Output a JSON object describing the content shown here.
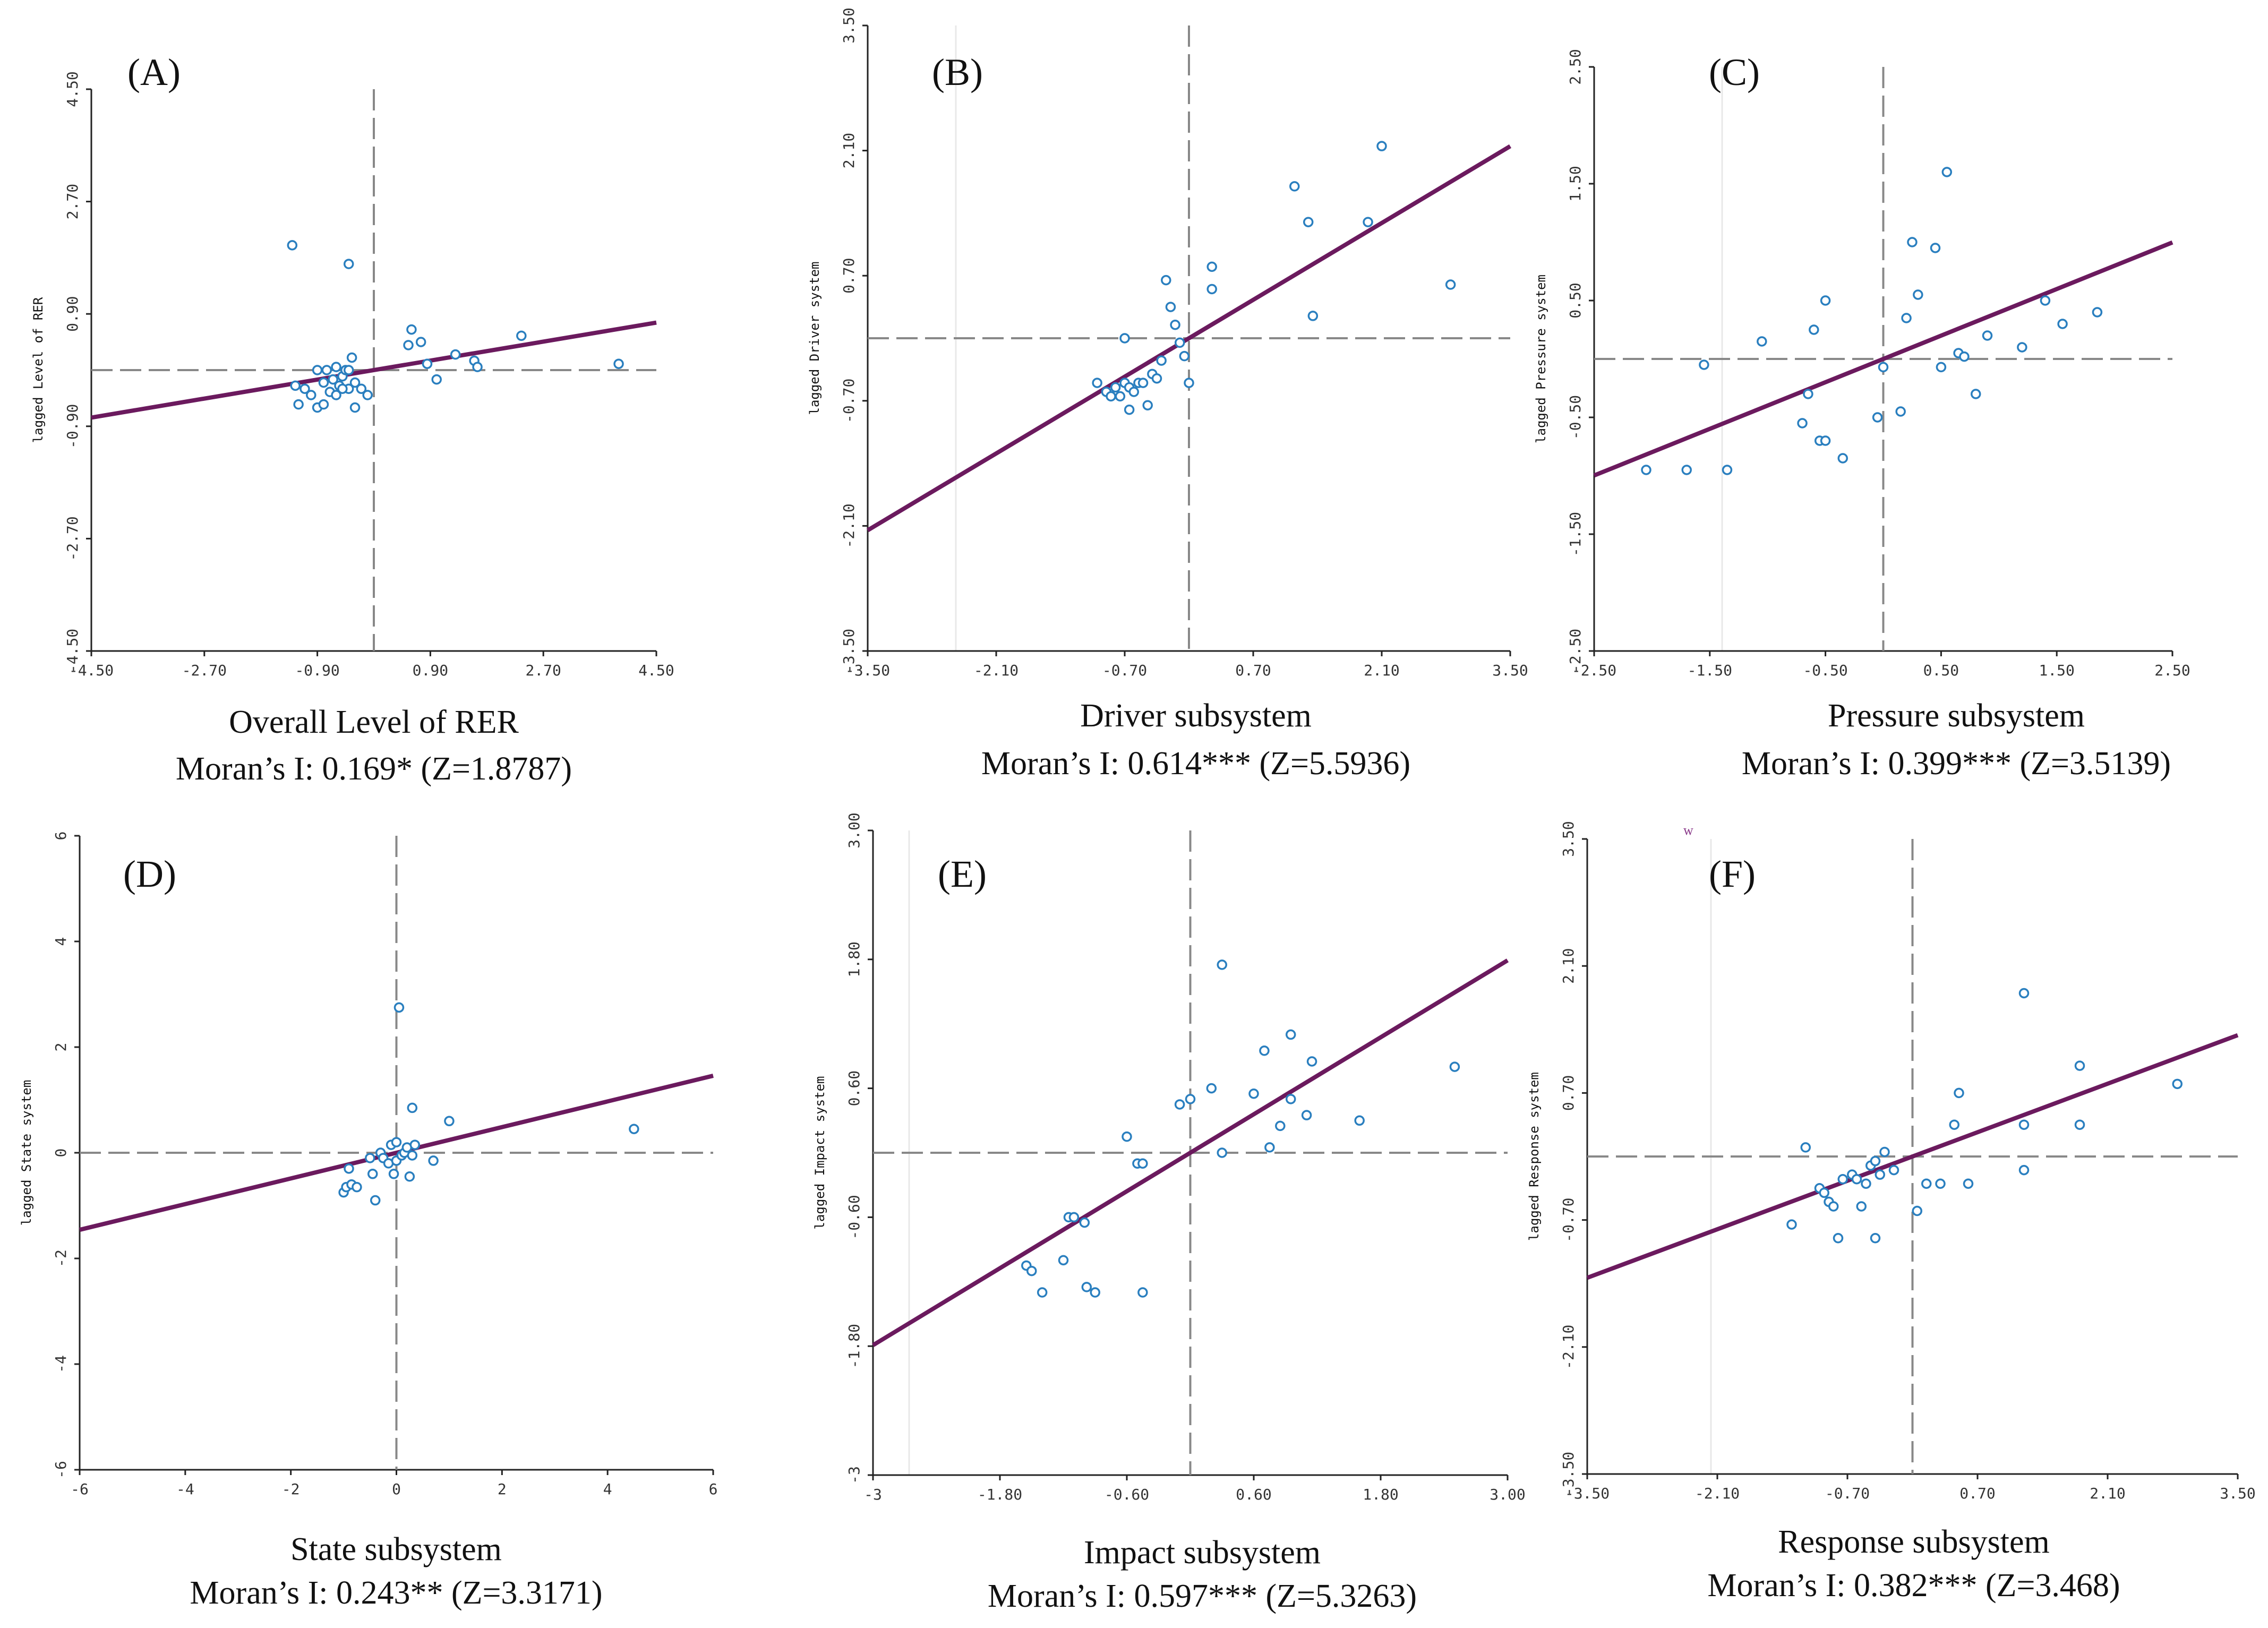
{
  "figure": {
    "colors": {
      "fit_line": "#6b1a5e",
      "points": "#2a7fbf",
      "zero_line": "#888888"
    },
    "stray_mark": "w"
  },
  "chart_data": [
    {
      "type": "scatter",
      "panel_label": "(A)",
      "xlabel": "Overall Level of RER",
      "ylabel": "lagged Level of RER",
      "moran_text": "Moran’s I: 0.169* (Z=1.8787)",
      "moran_i": 0.169,
      "z": 1.8787,
      "xlim": [
        -4.5,
        4.5
      ],
      "ylim": [
        -4.5,
        4.5
      ],
      "xticks": [
        -4.5,
        -2.7,
        -0.9,
        0.9,
        2.7,
        4.5
      ],
      "xtick_labels": [
        "-4.50",
        "-2.70",
        "-0.90",
        "0.90",
        "2.70",
        "4.50"
      ],
      "yticks": [
        -4.5,
        -2.7,
        -0.9,
        0.9,
        2.7,
        4.5
      ],
      "ytick_labels": [
        "-4.50",
        "-2.70",
        "-0.90",
        "0.90",
        "2.70",
        "4.50"
      ],
      "slope": 0.169,
      "intercept": 0.0,
      "points": [
        [
          -1.3,
          2.0
        ],
        [
          -0.4,
          1.7
        ],
        [
          -1.25,
          -0.25
        ],
        [
          -1.1,
          -0.3
        ],
        [
          -1.0,
          -0.4
        ],
        [
          -0.9,
          -0.6
        ],
        [
          -0.8,
          -0.2
        ],
        [
          -0.75,
          0.0
        ],
        [
          -0.7,
          -0.35
        ],
        [
          -0.65,
          -0.15
        ],
        [
          -0.6,
          -0.4
        ],
        [
          -0.55,
          -0.25
        ],
        [
          -0.5,
          -0.1
        ],
        [
          -0.45,
          0.0
        ],
        [
          -0.4,
          -0.3
        ],
        [
          -0.35,
          0.2
        ],
        [
          -0.3,
          -0.6
        ],
        [
          -0.3,
          -0.2
        ],
        [
          -0.2,
          -0.3
        ],
        [
          -0.9,
          0.0
        ],
        [
          -0.6,
          0.05
        ],
        [
          -0.5,
          -0.3
        ],
        [
          -0.8,
          -0.55
        ],
        [
          -0.4,
          0.0
        ],
        [
          0.55,
          0.4
        ],
        [
          0.6,
          0.65
        ],
        [
          0.75,
          0.45
        ],
        [
          0.85,
          0.1
        ],
        [
          1.0,
          -0.15
        ],
        [
          1.3,
          0.25
        ],
        [
          1.6,
          0.15
        ],
        [
          1.65,
          0.05
        ],
        [
          2.35,
          0.55
        ],
        [
          -1.2,
          -0.55
        ],
        [
          3.9,
          0.1
        ],
        [
          -0.1,
          -0.4
        ]
      ]
    },
    {
      "type": "scatter",
      "panel_label": "(B)",
      "xlabel": "Driver subsystem",
      "ylabel": "lagged Driver system",
      "moran_text": "Moran’s I: 0.614*** (Z=5.5936)",
      "moran_i": 0.614,
      "z": 5.5936,
      "xlim": [
        -3.5,
        3.5
      ],
      "ylim": [
        -3.5,
        3.5
      ],
      "xticks": [
        -3.5,
        -2.1,
        -0.7,
        0.7,
        2.1,
        3.5
      ],
      "xtick_labels": [
        "-3.50",
        "-2.10",
        "-0.70",
        "0.70",
        "2.10",
        "3.50"
      ],
      "yticks": [
        -3.5,
        -2.1,
        -0.7,
        0.7,
        2.1,
        3.5
      ],
      "ytick_labels": [
        "-3.50",
        "-2.10",
        "-0.70",
        "0.70",
        "2.10",
        "3.50"
      ],
      "slope": 0.614,
      "intercept": 0.0,
      "points": [
        [
          -1.0,
          -0.5
        ],
        [
          -0.9,
          -0.6
        ],
        [
          -0.85,
          -0.65
        ],
        [
          -0.8,
          -0.55
        ],
        [
          -0.75,
          -0.65
        ],
        [
          -0.7,
          -0.5
        ],
        [
          -0.65,
          -0.55
        ],
        [
          -0.65,
          -0.8
        ],
        [
          -0.6,
          -0.6
        ],
        [
          -0.55,
          -0.5
        ],
        [
          -0.5,
          -0.5
        ],
        [
          -0.45,
          -0.75
        ],
        [
          -0.4,
          -0.4
        ],
        [
          -0.35,
          -0.45
        ],
        [
          -0.3,
          -0.25
        ],
        [
          -0.25,
          0.65
        ],
        [
          -0.2,
          0.35
        ],
        [
          -0.7,
          0.0
        ],
        [
          -0.15,
          0.15
        ],
        [
          -0.1,
          -0.05
        ],
        [
          -0.05,
          -0.2
        ],
        [
          0.0,
          -0.5
        ],
        [
          0.25,
          0.8
        ],
        [
          0.25,
          0.55
        ],
        [
          1.15,
          1.7
        ],
        [
          1.3,
          1.3
        ],
        [
          1.35,
          0.25
        ],
        [
          1.95,
          1.3
        ],
        [
          2.1,
          2.15
        ],
        [
          2.85,
          0.6
        ]
      ]
    },
    {
      "type": "scatter",
      "panel_label": "(C)",
      "xlabel": "Pressure subsystem",
      "ylabel": "lagged Pressure system",
      "moran_text": "Moran’s I: 0.399*** (Z=3.5139)",
      "moran_i": 0.399,
      "z": 3.5139,
      "xlim": [
        -2.5,
        2.5
      ],
      "ylim": [
        -2.5,
        2.5
      ],
      "xticks": [
        -2.5,
        -1.5,
        -0.5,
        0.5,
        1.5,
        2.5
      ],
      "xtick_labels": [
        "-2.50",
        "-1.50",
        "-0.50",
        "0.50",
        "1.50",
        "2.50"
      ],
      "yticks": [
        -2.5,
        -1.5,
        -0.5,
        0.5,
        1.5,
        2.5
      ],
      "ytick_labels": [
        "-2.50",
        "-1.50",
        "-0.50",
        "0.50",
        "1.50",
        "2.50"
      ],
      "slope": 0.399,
      "intercept": 0.0,
      "points": [
        [
          -2.05,
          -0.95
        ],
        [
          -1.7,
          -0.95
        ],
        [
          -1.35,
          -0.95
        ],
        [
          -1.55,
          -0.05
        ],
        [
          -1.05,
          0.15
        ],
        [
          -0.7,
          -0.55
        ],
        [
          -0.65,
          -0.3
        ],
        [
          -0.6,
          0.25
        ],
        [
          -0.55,
          -0.7
        ],
        [
          -0.5,
          -0.7
        ],
        [
          -0.5,
          0.5
        ],
        [
          -0.35,
          -0.85
        ],
        [
          -0.05,
          -0.5
        ],
        [
          0.0,
          -0.07
        ],
        [
          0.15,
          -0.45
        ],
        [
          0.2,
          0.35
        ],
        [
          0.25,
          1.0
        ],
        [
          0.3,
          0.55
        ],
        [
          0.45,
          0.95
        ],
        [
          0.5,
          -0.07
        ],
        [
          0.55,
          1.6
        ],
        [
          0.65,
          0.05
        ],
        [
          0.7,
          0.02
        ],
        [
          0.8,
          -0.3
        ],
        [
          0.9,
          0.2
        ],
        [
          1.2,
          0.1
        ],
        [
          1.4,
          0.5
        ],
        [
          1.55,
          0.3
        ],
        [
          1.85,
          0.4
        ]
      ]
    },
    {
      "type": "scatter",
      "panel_label": "(D)",
      "xlabel": "State subsystem",
      "ylabel": "lagged State system",
      "moran_text": "Moran’s I: 0.243** (Z=3.3171)",
      "moran_i": 0.243,
      "z": 3.3171,
      "xlim": [
        -6,
        6
      ],
      "ylim": [
        -6,
        6
      ],
      "xticks": [
        -6,
        -4,
        -2,
        0,
        2,
        4,
        6
      ],
      "xtick_labels": [
        "-6",
        "-4",
        "-2",
        "0",
        "2",
        "4",
        "6"
      ],
      "yticks": [
        -6,
        -4,
        -2,
        0,
        2,
        4,
        6
      ],
      "ytick_labels": [
        "-6",
        "-4",
        "-2",
        "0",
        "2",
        "4",
        "6"
      ],
      "slope": 0.243,
      "intercept": 0.0,
      "points": [
        [
          -1.0,
          -0.75
        ],
        [
          -0.95,
          -0.65
        ],
        [
          -0.85,
          -0.6
        ],
        [
          -0.75,
          -0.65
        ],
        [
          -0.9,
          -0.3
        ],
        [
          -0.5,
          -0.1
        ],
        [
          -0.4,
          -0.9
        ],
        [
          -0.3,
          0.0
        ],
        [
          -0.25,
          -0.1
        ],
        [
          -0.15,
          -0.2
        ],
        [
          -0.1,
          0.15
        ],
        [
          -0.05,
          -0.4
        ],
        [
          0.0,
          0.2
        ],
        [
          0.0,
          -0.15
        ],
        [
          0.05,
          2.75
        ],
        [
          0.1,
          -0.05
        ],
        [
          0.15,
          0.0
        ],
        [
          0.2,
          0.1
        ],
        [
          0.25,
          -0.45
        ],
        [
          0.3,
          -0.05
        ],
        [
          0.3,
          0.85
        ],
        [
          0.35,
          0.15
        ],
        [
          0.7,
          -0.15
        ],
        [
          1.0,
          0.6
        ],
        [
          4.5,
          0.45
        ],
        [
          -0.45,
          -0.4
        ]
      ]
    },
    {
      "type": "scatter",
      "panel_label": "(E)",
      "xlabel": "Impact subsystem",
      "ylabel": "lagged Impact system",
      "moran_text": "Moran’s I: 0.597*** (Z=5.3263)",
      "moran_i": 0.597,
      "z": 5.3263,
      "xlim": [
        -3,
        3
      ],
      "ylim": [
        -3,
        3
      ],
      "xticks": [
        -3,
        -1.8,
        -0.6,
        0.6,
        1.8,
        3
      ],
      "xtick_labels": [
        "-3",
        "-1.80",
        "-0.60",
        "0.60",
        "1.80",
        "3.00"
      ],
      "yticks": [
        -3,
        -1.8,
        -0.6,
        0.6,
        1.8,
        3
      ],
      "ytick_labels": [
        "-3",
        "-1.80",
        "-0.60",
        "0.60",
        "1.80",
        "3.00"
      ],
      "slope": 0.597,
      "intercept": 0.0,
      "points": [
        [
          -1.55,
          -1.05
        ],
        [
          -1.5,
          -1.1
        ],
        [
          -1.4,
          -1.3
        ],
        [
          -1.2,
          -1.0
        ],
        [
          -1.15,
          -0.6
        ],
        [
          -1.1,
          -0.6
        ],
        [
          -1.0,
          -0.65
        ],
        [
          -0.98,
          -1.25
        ],
        [
          -0.9,
          -1.3
        ],
        [
          -0.6,
          0.15
        ],
        [
          -0.5,
          -0.1
        ],
        [
          -0.45,
          -0.1
        ],
        [
          -0.45,
          -1.3
        ],
        [
          -0.1,
          0.45
        ],
        [
          0.0,
          0.5
        ],
        [
          0.2,
          0.6
        ],
        [
          0.3,
          1.75
        ],
        [
          0.3,
          0.0
        ],
        [
          0.6,
          0.55
        ],
        [
          0.7,
          0.95
        ],
        [
          0.75,
          0.05
        ],
        [
          0.85,
          0.25
        ],
        [
          0.95,
          1.1
        ],
        [
          1.1,
          0.35
        ],
        [
          1.15,
          0.85
        ],
        [
          1.6,
          0.3
        ],
        [
          2.5,
          0.8
        ],
        [
          0.95,
          0.5
        ]
      ]
    },
    {
      "type": "scatter",
      "panel_label": "(F)",
      "xlabel": "Response subsystem",
      "ylabel": "lagged Response system",
      "moran_text": "Moran’s I: 0.382*** (Z=3.468)",
      "moran_i": 0.382,
      "z": 3.468,
      "xlim": [
        -3.5,
        3.5
      ],
      "ylim": [
        -3.5,
        3.5
      ],
      "xticks": [
        -3.5,
        -2.1,
        -0.7,
        0.7,
        2.1,
        3.5
      ],
      "xtick_labels": [
        "-3.50",
        "-2.10",
        "-0.70",
        "0.70",
        "2.10",
        "3.50"
      ],
      "yticks": [
        -3.5,
        -2.1,
        -0.7,
        0.7,
        2.1,
        3.5
      ],
      "ytick_labels": [
        "-3.50",
        "-2.10",
        "-0.70",
        "0.70",
        "2.10",
        "3.50"
      ],
      "slope": 0.382,
      "intercept": 0.0,
      "points": [
        [
          -1.3,
          -0.75
        ],
        [
          -1.15,
          0.1
        ],
        [
          -1.0,
          -0.35
        ],
        [
          -0.95,
          -0.4
        ],
        [
          -0.9,
          -0.5
        ],
        [
          -0.85,
          -0.55
        ],
        [
          -0.8,
          -0.9
        ],
        [
          -0.75,
          -0.25
        ],
        [
          -0.65,
          -0.2
        ],
        [
          -0.6,
          -0.25
        ],
        [
          -0.55,
          -0.55
        ],
        [
          -0.5,
          -0.3
        ],
        [
          -0.45,
          -0.1
        ],
        [
          -0.4,
          -0.9
        ],
        [
          -0.4,
          -0.05
        ],
        [
          -0.35,
          -0.2
        ],
        [
          -0.3,
          0.05
        ],
        [
          -0.2,
          -0.15
        ],
        [
          0.05,
          -0.6
        ],
        [
          0.15,
          -0.3
        ],
        [
          0.3,
          -0.3
        ],
        [
          0.45,
          0.35
        ],
        [
          0.5,
          0.7
        ],
        [
          0.6,
          -0.3
        ],
        [
          1.2,
          0.35
        ],
        [
          1.2,
          -0.15
        ],
        [
          1.2,
          1.8
        ],
        [
          1.8,
          1.0
        ],
        [
          1.8,
          0.35
        ],
        [
          2.85,
          0.8
        ]
      ]
    }
  ]
}
